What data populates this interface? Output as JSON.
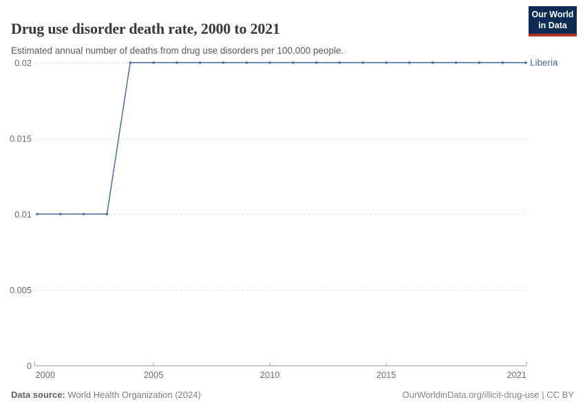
{
  "header": {
    "title": "Drug use disorder death rate, 2000 to 2021",
    "subtitle": "Estimated annual number of deaths from drug use disorders per 100,000 people.",
    "logo": {
      "line1": "Our World",
      "line2": "in Data"
    }
  },
  "chart_data": {
    "type": "line",
    "title": "Drug use disorder death rate, 2000 to 2021",
    "xlabel": "",
    "ylabel": "",
    "x": [
      2000,
      2001,
      2002,
      2003,
      2004,
      2005,
      2006,
      2007,
      2008,
      2009,
      2010,
      2011,
      2012,
      2013,
      2014,
      2015,
      2016,
      2017,
      2018,
      2019,
      2020,
      2021
    ],
    "series": [
      {
        "name": "Liberia",
        "color": "#4c6a9c",
        "values": [
          0.01,
          0.01,
          0.01,
          0.01,
          0.02,
          0.02,
          0.02,
          0.02,
          0.02,
          0.02,
          0.02,
          0.02,
          0.02,
          0.02,
          0.02,
          0.02,
          0.02,
          0.02,
          0.02,
          0.02,
          0.02,
          0.02
        ]
      }
    ],
    "ylim": [
      0,
      0.02
    ],
    "yticks": [
      0,
      0.005,
      0.01,
      0.015,
      0.02
    ],
    "xticks": [
      2000,
      2005,
      2010,
      2015,
      2021
    ],
    "grid": "horizontal-dashed",
    "legend_position": "right-of-line-end",
    "markers": true
  },
  "colors": {
    "line": "#4c6a9c",
    "grid": "#d9d9d9",
    "axis": "#a1a1a1",
    "tick_label": "#6e6e6e",
    "logo_bg": "#0d2c54",
    "logo_accent": "#b03529"
  },
  "footer": {
    "source_label": "Data source:",
    "source_value": "World Health Organization (2024)",
    "rights": "OurWorldinData.org/illicit-drug-use | CC BY"
  }
}
